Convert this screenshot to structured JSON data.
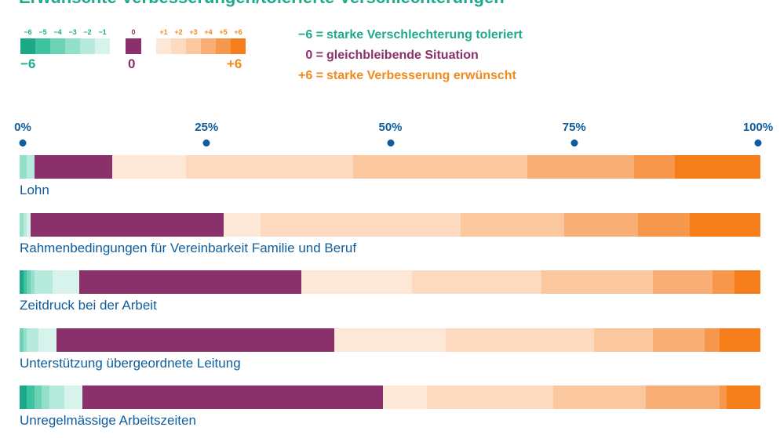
{
  "title": "Erwünschte Verbesserungen/tolerierte Verschlechterungen",
  "legend": {
    "neg_labels": [
      "−6",
      "−5",
      "−4",
      "−3",
      "−2",
      "−1"
    ],
    "zero_label": "0",
    "pos_labels": [
      "+1",
      "+2",
      "+3",
      "+4",
      "+5",
      "+6"
    ],
    "neg_end": "−6",
    "zero_end": "0",
    "pos_end": "+6",
    "explanations": [
      {
        "code": "−6 =",
        "text": "starke Verschlechterung toleriert",
        "color": "#20a98a"
      },
      {
        "code": "0 =",
        "text": "gleichbleibende Situation",
        "color": "#8a316b"
      },
      {
        "code": "+6 =",
        "text": "starke Verbesserung erwünscht",
        "color": "#f08a1c"
      }
    ]
  },
  "colors": {
    "-6": "#1aa888",
    "-5": "#3fc2a0",
    "-4": "#6cd2b6",
    "-3": "#93dfca",
    "-2": "#b6eadc",
    "-1": "#d7f3eb",
    "0": "#8a316b",
    "1": "#fde8d8",
    "2": "#fcd9bf",
    "3": "#fbc79f",
    "4": "#f9ae75",
    "5": "#f7974c",
    "6": "#f57e1b"
  },
  "chart_data": {
    "type": "bar",
    "orientation": "horizontal",
    "stacked": true,
    "xlim": [
      0,
      100
    ],
    "x_ticks": [
      "0%",
      "25%",
      "50%",
      "75%",
      "100%"
    ],
    "scale_levels": [
      "-6",
      "-5",
      "-4",
      "-3",
      "-2",
      "-1",
      "0",
      "1",
      "2",
      "3",
      "4",
      "5",
      "6"
    ],
    "categories": [
      "Lohn",
      "Rahmenbedingungen für Vereinbarkeit Familie und Beruf",
      "Zeitdruck bei der Arbeit",
      "Unterstützung übergeordnete Leitung",
      "Unregelmässige Arbeitszeiten"
    ],
    "series": [
      {
        "name": "−6",
        "values": [
          0,
          0,
          0.5,
          0,
          1
        ]
      },
      {
        "name": "−5",
        "values": [
          0,
          0,
          0.5,
          0,
          1
        ]
      },
      {
        "name": "−4",
        "values": [
          0,
          0,
          0.5,
          0.5,
          1
        ]
      },
      {
        "name": "−3",
        "values": [
          1,
          0.5,
          0.5,
          0.5,
          1
        ]
      },
      {
        "name": "−2",
        "values": [
          1,
          0.5,
          2.5,
          1.5,
          2
        ]
      },
      {
        "name": "−1",
        "values": [
          0,
          0.5,
          3.5,
          2.5,
          2.5
        ]
      },
      {
        "name": "0",
        "values": [
          10.5,
          26,
          30,
          37.5,
          40.5
        ]
      },
      {
        "name": "+1",
        "values": [
          10,
          5,
          15,
          15,
          6
        ]
      },
      {
        "name": "+2",
        "values": [
          22.5,
          27,
          17.5,
          20,
          17
        ]
      },
      {
        "name": "+3",
        "values": [
          23.5,
          14,
          15,
          8,
          12.5
        ]
      },
      {
        "name": "+4",
        "values": [
          14.5,
          10,
          8,
          7,
          10
        ]
      },
      {
        "name": "+5",
        "values": [
          5.5,
          7,
          3,
          2,
          1
        ]
      },
      {
        "name": "+6",
        "values": [
          11.5,
          9.5,
          3.5,
          5.5,
          4.5
        ]
      }
    ]
  }
}
